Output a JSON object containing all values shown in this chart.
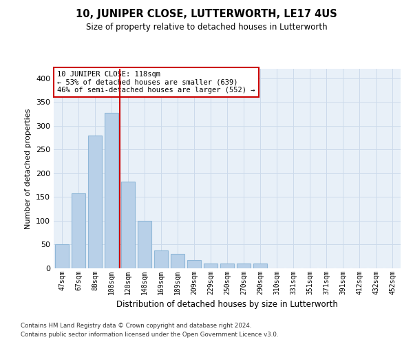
{
  "title": "10, JUNIPER CLOSE, LUTTERWORTH, LE17 4US",
  "subtitle": "Size of property relative to detached houses in Lutterworth",
  "xlabel": "Distribution of detached houses by size in Lutterworth",
  "ylabel": "Number of detached properties",
  "categories": [
    "47sqm",
    "67sqm",
    "88sqm",
    "108sqm",
    "128sqm",
    "148sqm",
    "169sqm",
    "189sqm",
    "209sqm",
    "229sqm",
    "250sqm",
    "270sqm",
    "290sqm",
    "310sqm",
    "331sqm",
    "351sqm",
    "371sqm",
    "391sqm",
    "412sqm",
    "432sqm",
    "452sqm"
  ],
  "values": [
    50,
    158,
    280,
    328,
    182,
    100,
    38,
    30,
    18,
    10,
    10,
    10,
    10,
    0,
    0,
    0,
    0,
    0,
    0,
    0,
    0
  ],
  "bar_color": "#b8d0e8",
  "bar_edge_color": "#90b8d8",
  "grid_color": "#ccdaeb",
  "background_color": "#e8f0f8",
  "vline_color": "#cc0000",
  "annotation_text": "10 JUNIPER CLOSE: 118sqm\n← 53% of detached houses are smaller (639)\n46% of semi-detached houses are larger (552) →",
  "annotation_box_color": "#ffffff",
  "annotation_box_edge": "#cc0000",
  "ylim": [
    0,
    420
  ],
  "yticks": [
    0,
    50,
    100,
    150,
    200,
    250,
    300,
    350,
    400
  ],
  "footer1": "Contains HM Land Registry data © Crown copyright and database right 2024.",
  "footer2": "Contains public sector information licensed under the Open Government Licence v3.0."
}
